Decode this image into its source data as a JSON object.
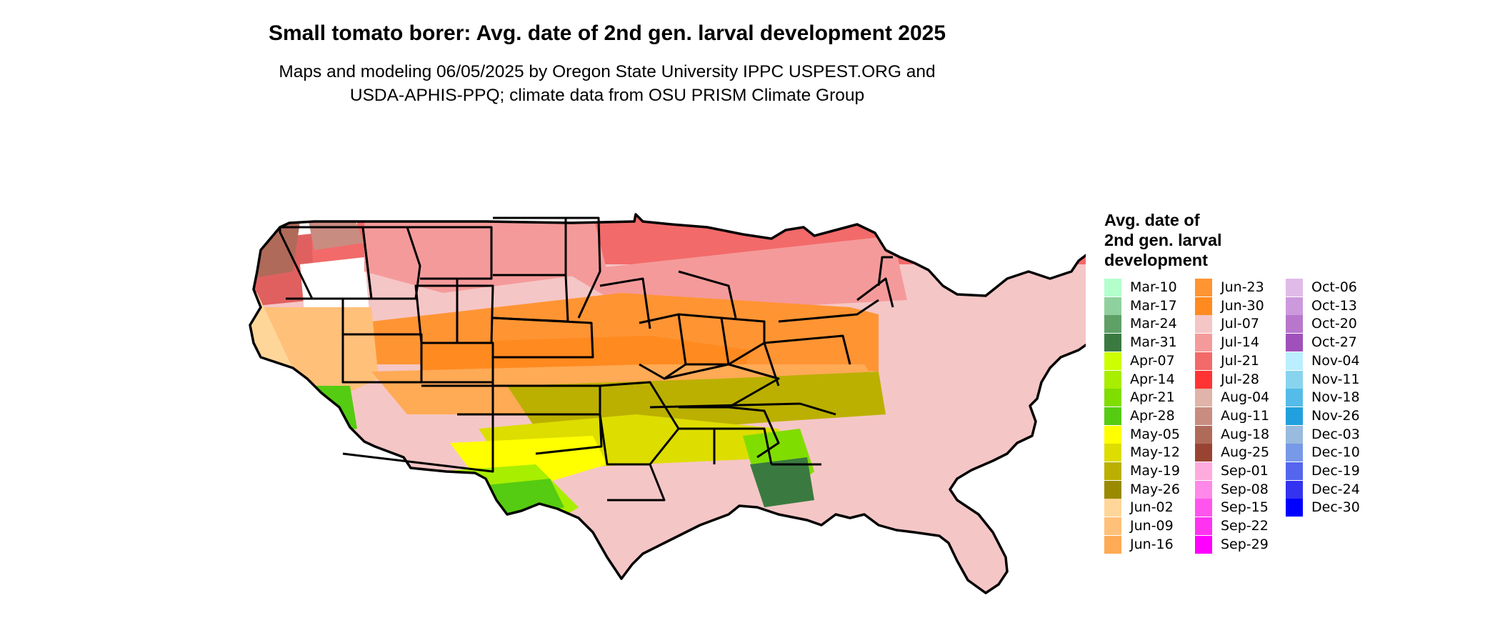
{
  "title": "Small tomato borer: Avg. date of 2nd gen. larval development 2025",
  "subtitle_lines": [
    "Maps and modeling 06/05/2025 by Oregon State University IPPC USPEST.ORG and",
    "USDA-APHIS-PPQ; climate data from OSU PRISM Climate Group"
  ],
  "legend": {
    "title_lines": [
      "Avg. date of",
      "2nd gen. larval",
      "development"
    ],
    "items": [
      {
        "label": "Mar-10",
        "color": "#b3ffcc"
      },
      {
        "label": "Mar-17",
        "color": "#8fd19e"
      },
      {
        "label": "Mar-24",
        "color": "#5fa067"
      },
      {
        "label": "Mar-31",
        "color": "#3a7a40"
      },
      {
        "label": "Apr-07",
        "color": "#ccff00"
      },
      {
        "label": "Apr-14",
        "color": "#a8ee00"
      },
      {
        "label": "Apr-21",
        "color": "#80dd00"
      },
      {
        "label": "Apr-28",
        "color": "#55cc11"
      },
      {
        "label": "May-05",
        "color": "#ffff00"
      },
      {
        "label": "May-12",
        "color": "#dddd00"
      },
      {
        "label": "May-19",
        "color": "#bbb000"
      },
      {
        "label": "May-26",
        "color": "#998a00"
      },
      {
        "label": "Jun-02",
        "color": "#ffd699"
      },
      {
        "label": "Jun-09",
        "color": "#ffc07a"
      },
      {
        "label": "Jun-16",
        "color": "#ffaa55"
      },
      {
        "label": "Jun-23",
        "color": "#ff9433"
      },
      {
        "label": "Jun-30",
        "color": "#ff8a1f"
      },
      {
        "label": "Jul-07",
        "color": "#f5c6c6"
      },
      {
        "label": "Jul-14",
        "color": "#f59a9a"
      },
      {
        "label": "Jul-21",
        "color": "#f26a6a"
      },
      {
        "label": "Jul-28",
        "color": "#ff3333"
      },
      {
        "label": "Aug-04",
        "color": "#e0b4a8"
      },
      {
        "label": "Aug-11",
        "color": "#c98c80"
      },
      {
        "label": "Aug-18",
        "color": "#b06a5a"
      },
      {
        "label": "Aug-25",
        "color": "#994433"
      },
      {
        "label": "Sep-01",
        "color": "#ffaadd"
      },
      {
        "label": "Sep-08",
        "color": "#ff88e8"
      },
      {
        "label": "Sep-15",
        "color": "#ff55ee"
      },
      {
        "label": "Sep-22",
        "color": "#ff33f0"
      },
      {
        "label": "Sep-29",
        "color": "#ff00ff"
      },
      {
        "label": "Oct-06",
        "color": "#e0bbe8"
      },
      {
        "label": "Oct-13",
        "color": "#cc99dd"
      },
      {
        "label": "Oct-20",
        "color": "#b877cc"
      },
      {
        "label": "Oct-27",
        "color": "#a050bb"
      },
      {
        "label": "Nov-04",
        "color": "#bbeeff"
      },
      {
        "label": "Nov-11",
        "color": "#88d4ee"
      },
      {
        "label": "Nov-18",
        "color": "#55bbe8"
      },
      {
        "label": "Nov-26",
        "color": "#22a0dd"
      },
      {
        "label": "Dec-03",
        "color": "#99bbdd"
      },
      {
        "label": "Dec-10",
        "color": "#7799e8"
      },
      {
        "label": "Dec-19",
        "color": "#5566ee"
      },
      {
        "label": "Dec-24",
        "color": "#3333f0"
      },
      {
        "label": "Dec-30",
        "color": "#0000ff"
      }
    ]
  }
}
